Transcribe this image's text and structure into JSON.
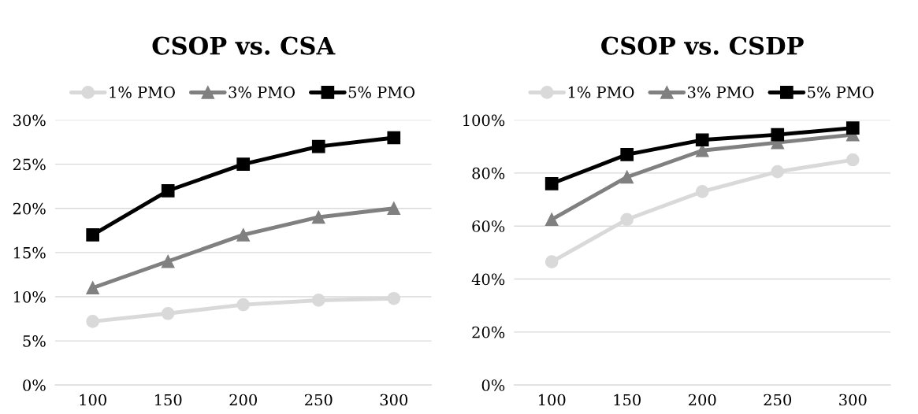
{
  "chart_data": [
    {
      "type": "line",
      "title": "CSOP vs. CSA",
      "categories": [
        "100",
        "150",
        "200",
        "250",
        "300"
      ],
      "ylim": [
        0,
        30
      ],
      "yticks": [
        {
          "value": 0,
          "label": "0%"
        },
        {
          "value": 5,
          "label": "5%"
        },
        {
          "value": 10,
          "label": "10%"
        },
        {
          "value": 15,
          "label": "15%"
        },
        {
          "value": 20,
          "label": "20%"
        },
        {
          "value": 25,
          "label": "25%"
        },
        {
          "value": 30,
          "label": "30%"
        }
      ],
      "grid": "y",
      "legend": "top",
      "series": [
        {
          "name": "1% PMO",
          "color": "#d9d9d9",
          "marker": "circle",
          "values": [
            7.2,
            8.1,
            9.1,
            9.6,
            9.8
          ]
        },
        {
          "name": "3% PMO",
          "color": "#808080",
          "marker": "triangle",
          "values": [
            11,
            14,
            17,
            19,
            20
          ]
        },
        {
          "name": "5% PMO",
          "color": "#000000",
          "marker": "square",
          "values": [
            17,
            22,
            25,
            27,
            28
          ]
        }
      ]
    },
    {
      "type": "line",
      "title": "CSOP vs. CSDP",
      "categories": [
        "100",
        "150",
        "200",
        "250",
        "300"
      ],
      "ylim": [
        0,
        100
      ],
      "yticks": [
        {
          "value": 0,
          "label": "0%"
        },
        {
          "value": 20,
          "label": "20%"
        },
        {
          "value": 40,
          "label": "40%"
        },
        {
          "value": 60,
          "label": "60%"
        },
        {
          "value": 80,
          "label": "80%"
        },
        {
          "value": 100,
          "label": "100%"
        }
      ],
      "grid": "y",
      "legend": "top",
      "series": [
        {
          "name": "1% PMO",
          "color": "#d9d9d9",
          "marker": "circle",
          "values": [
            46.5,
            62.5,
            73,
            80.5,
            85
          ]
        },
        {
          "name": "3% PMO",
          "color": "#808080",
          "marker": "triangle",
          "values": [
            62.5,
            78.5,
            88.5,
            91.5,
            94.5
          ]
        },
        {
          "name": "5% PMO",
          "color": "#000000",
          "marker": "square",
          "values": [
            76,
            87,
            92.5,
            94.5,
            97
          ]
        }
      ]
    }
  ]
}
